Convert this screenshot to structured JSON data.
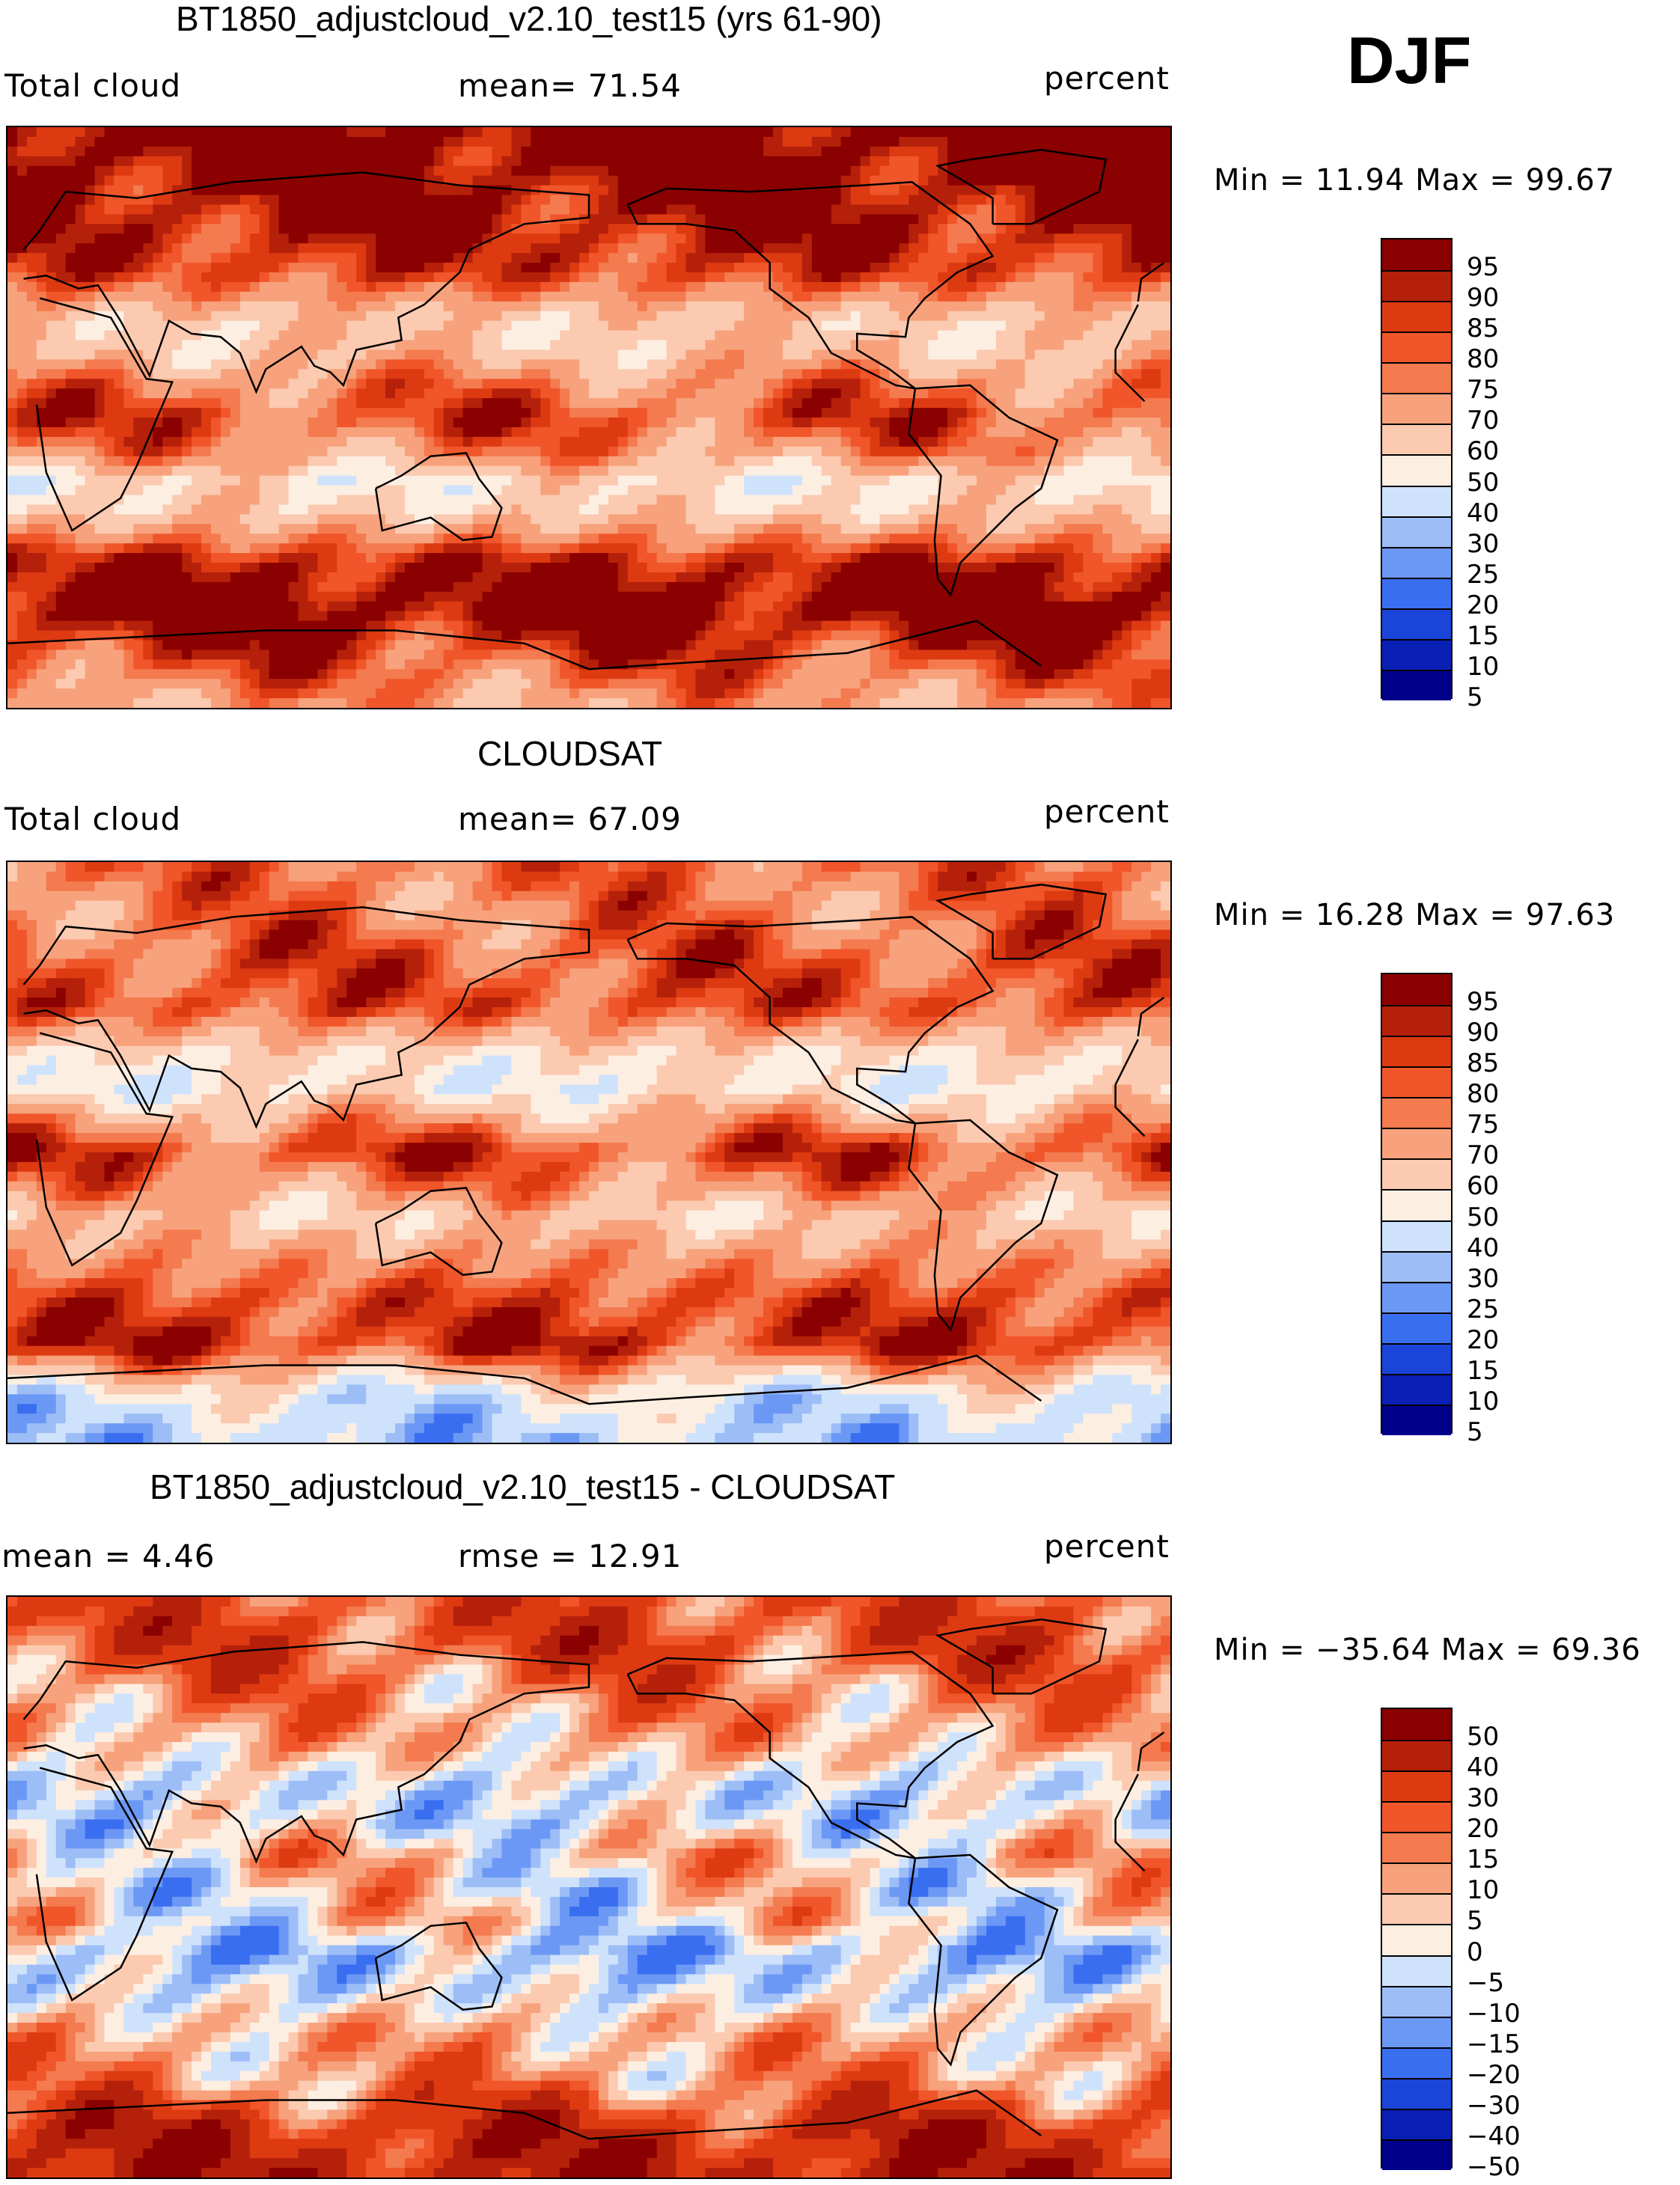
{
  "season": "DJF",
  "palettes": {
    "absolute": [
      "#00008b",
      "#0a1fb4",
      "#1a45d8",
      "#3a6ef0",
      "#6c98f5",
      "#9dbdf7",
      "#cfe2fb",
      "#fdeee2",
      "#fbcab0",
      "#f7a27c",
      "#f47a4f",
      "#f0562a",
      "#dd3a12",
      "#b5200a",
      "#8b0000"
    ],
    "difference": [
      "#00008b",
      "#0a1fb4",
      "#1a45d8",
      "#3a6ef0",
      "#6c98f5",
      "#9dbdf7",
      "#cfe2fb",
      "#fdeee2",
      "#fbcab0",
      "#f7a27c",
      "#f47a4f",
      "#f0562a",
      "#dd3a12",
      "#b5200a",
      "#8b0000"
    ]
  },
  "panels": [
    {
      "title": "BT1850_adjustcloud_v2.10_test15 (yrs 61-90)",
      "left_label": "Total cloud",
      "center_label": "mean=   71.54",
      "right_label": "percent",
      "minmax": "Min =   11.94 Max =   99.67",
      "colorbar_levels": [
        "95",
        "90",
        "85",
        "80",
        "75",
        "70",
        "60",
        "50",
        "40",
        "30",
        "25",
        "20",
        "15",
        "10",
        "5"
      ]
    },
    {
      "title": "CLOUDSAT",
      "left_label": "Total cloud",
      "center_label": "mean=   67.09",
      "right_label": "percent",
      "minmax": "Min =   16.28 Max =   97.63",
      "colorbar_levels": [
        "95",
        "90",
        "85",
        "80",
        "75",
        "70",
        "60",
        "50",
        "40",
        "30",
        "25",
        "20",
        "15",
        "10",
        "5"
      ]
    },
    {
      "title": "BT1850_adjustcloud_v2.10_test15 - CLOUDSAT",
      "left_label": "mean =    4.46",
      "center_label": "rmse =   12.91",
      "right_label": "percent",
      "minmax": "Min = −35.64 Max =   69.36",
      "colorbar_levels": [
        "50",
        "40",
        "30",
        "20",
        "15",
        "10",
        "5",
        "0",
        "−5",
        "−10",
        "−15",
        "−20",
        "−30",
        "−40",
        "−50"
      ]
    }
  ],
  "chart_data": [
    {
      "type": "heatmap",
      "title": "BT1850_adjustcloud_v2.10_test15 (yrs 61-90)",
      "variable": "Total cloud",
      "units": "percent",
      "mean": 71.54,
      "min": 11.94,
      "max": 99.67,
      "levels": [
        5,
        10,
        15,
        20,
        25,
        30,
        40,
        50,
        60,
        70,
        75,
        80,
        85,
        90,
        95
      ],
      "x_range": [
        0,
        360
      ],
      "y_range": [
        -90,
        90
      ],
      "zonal_profile": [
        [
          90,
          96
        ],
        [
          75,
          95
        ],
        [
          60,
          90
        ],
        [
          45,
          82
        ],
        [
          30,
          55
        ],
        [
          20,
          58
        ],
        [
          10,
          72
        ],
        [
          0,
          80
        ],
        [
          -10,
          70
        ],
        [
          -20,
          48
        ],
        [
          -30,
          55
        ],
        [
          -45,
          88
        ],
        [
          -60,
          97
        ],
        [
          -75,
          80
        ],
        [
          -90,
          65
        ]
      ]
    },
    {
      "type": "heatmap",
      "title": "CLOUDSAT",
      "variable": "Total cloud",
      "units": "percent",
      "mean": 67.09,
      "min": 16.28,
      "max": 97.63,
      "levels": [
        5,
        10,
        15,
        20,
        25,
        30,
        40,
        50,
        60,
        70,
        75,
        80,
        85,
        90,
        95
      ],
      "x_range": [
        0,
        360
      ],
      "y_range": [
        -90,
        90
      ],
      "zonal_profile": [
        [
          90,
          75
        ],
        [
          75,
          72
        ],
        [
          60,
          78
        ],
        [
          45,
          80
        ],
        [
          30,
          50
        ],
        [
          20,
          45
        ],
        [
          10,
          65
        ],
        [
          0,
          82
        ],
        [
          -10,
          70
        ],
        [
          -20,
          55
        ],
        [
          -30,
          65
        ],
        [
          -45,
          80
        ],
        [
          -60,
          85
        ],
        [
          -75,
          40
        ],
        [
          -90,
          30
        ]
      ]
    },
    {
      "type": "heatmap",
      "title": "BT1850_adjustcloud_v2.10_test15 - CLOUDSAT",
      "units": "percent",
      "mean": 4.46,
      "rmse": 12.91,
      "min": -35.64,
      "max": 69.36,
      "levels": [
        -50,
        -40,
        -30,
        -20,
        -15,
        -10,
        -5,
        0,
        5,
        10,
        15,
        20,
        30,
        40,
        50
      ],
      "x_range": [
        0,
        360
      ],
      "y_range": [
        -90,
        90
      ],
      "zonal_profile": [
        [
          90,
          20
        ],
        [
          75,
          22
        ],
        [
          60,
          12
        ],
        [
          45,
          6
        ],
        [
          30,
          -8
        ],
        [
          20,
          -6
        ],
        [
          10,
          4
        ],
        [
          0,
          -2
        ],
        [
          -10,
          0
        ],
        [
          -20,
          -12
        ],
        [
          -30,
          -8
        ],
        [
          -45,
          6
        ],
        [
          -60,
          10
        ],
        [
          -75,
          30
        ],
        [
          -90,
          35
        ]
      ]
    }
  ]
}
